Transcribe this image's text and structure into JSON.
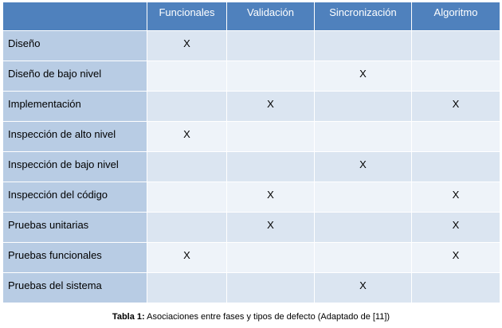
{
  "table": {
    "headers": [
      "",
      "Funcionales",
      "Validación",
      "Sincronización",
      "Algoritmo"
    ],
    "rows": [
      {
        "phase": "Diseño",
        "marks": [
          "X",
          "",
          "",
          ""
        ]
      },
      {
        "phase": "Diseño de bajo nivel",
        "marks": [
          "",
          "",
          "X",
          ""
        ]
      },
      {
        "phase": "Implementación",
        "marks": [
          "",
          "X",
          "",
          "X"
        ]
      },
      {
        "phase": "Inspección de alto nivel",
        "marks": [
          "X",
          "",
          "",
          ""
        ]
      },
      {
        "phase": "Inspección de bajo nivel",
        "marks": [
          "",
          "",
          "X",
          ""
        ]
      },
      {
        "phase": "Inspección del código",
        "marks": [
          "",
          "X",
          "",
          "X"
        ]
      },
      {
        "phase": "Pruebas unitarias",
        "marks": [
          "",
          "X",
          "",
          "X"
        ]
      },
      {
        "phase": "Pruebas funcionales",
        "marks": [
          "X",
          "",
          "",
          "X"
        ]
      },
      {
        "phase": "Pruebas del sistema",
        "marks": [
          "",
          "",
          "X",
          ""
        ]
      }
    ]
  },
  "caption": {
    "label": "Tabla 1:",
    "text": " Asociaciones entre fases y tipos de defecto (Adaptado de [11])"
  },
  "colors": {
    "header_bg": "#4f81bd",
    "phase_bg": "#b8cce4",
    "cell_bg_odd": "#dbe5f1",
    "cell_bg_even": "#eef3f9"
  }
}
